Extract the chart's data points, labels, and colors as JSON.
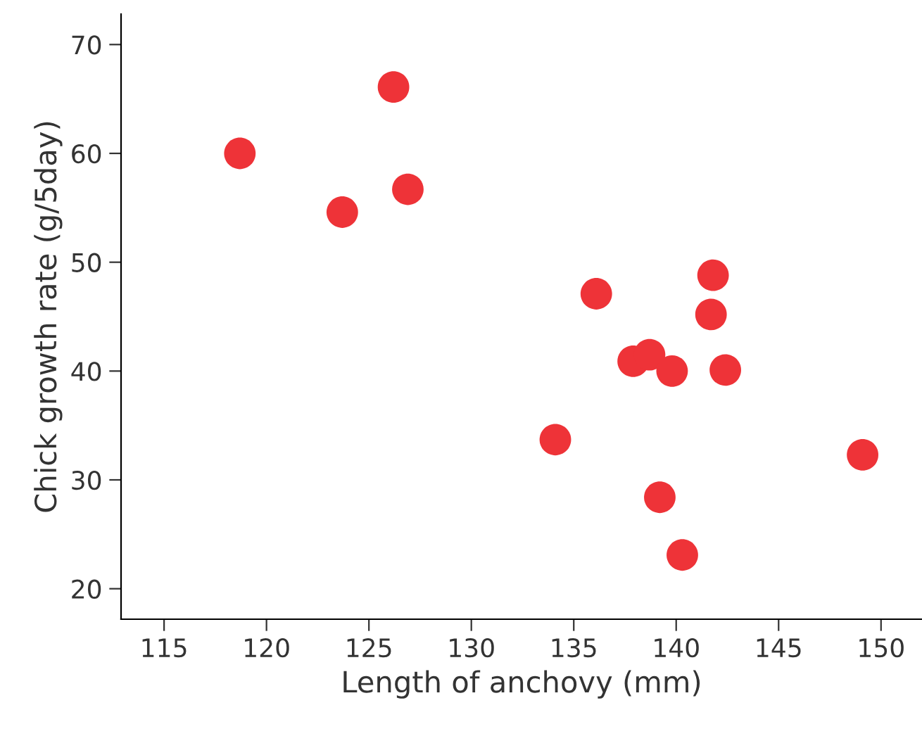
{
  "chart_data": {
    "type": "scatter",
    "xlabel": "Length of anchovy (mm)",
    "ylabel": "Chick growth rate (g/5day)",
    "x": [
      118.7,
      123.7,
      126.2,
      126.9,
      134.1,
      136.1,
      137.9,
      138.7,
      139.8,
      139.2,
      140.3,
      141.8,
      141.7,
      142.4,
      149.1
    ],
    "values": [
      60.0,
      54.6,
      66.1,
      56.7,
      33.7,
      47.1,
      40.9,
      41.5,
      40.0,
      28.4,
      23.1,
      48.8,
      45.2,
      40.1,
      32.3
    ],
    "color": "#ee3338",
    "marker": "circle",
    "grid": false,
    "legend": false,
    "xlim": [
      112.9,
      152
    ],
    "ylim": [
      17.2,
      72.8
    ],
    "xticks": [
      115,
      120,
      125,
      130,
      135,
      140,
      145,
      150
    ],
    "yticks": [
      20,
      30,
      40,
      50,
      60,
      70
    ]
  }
}
